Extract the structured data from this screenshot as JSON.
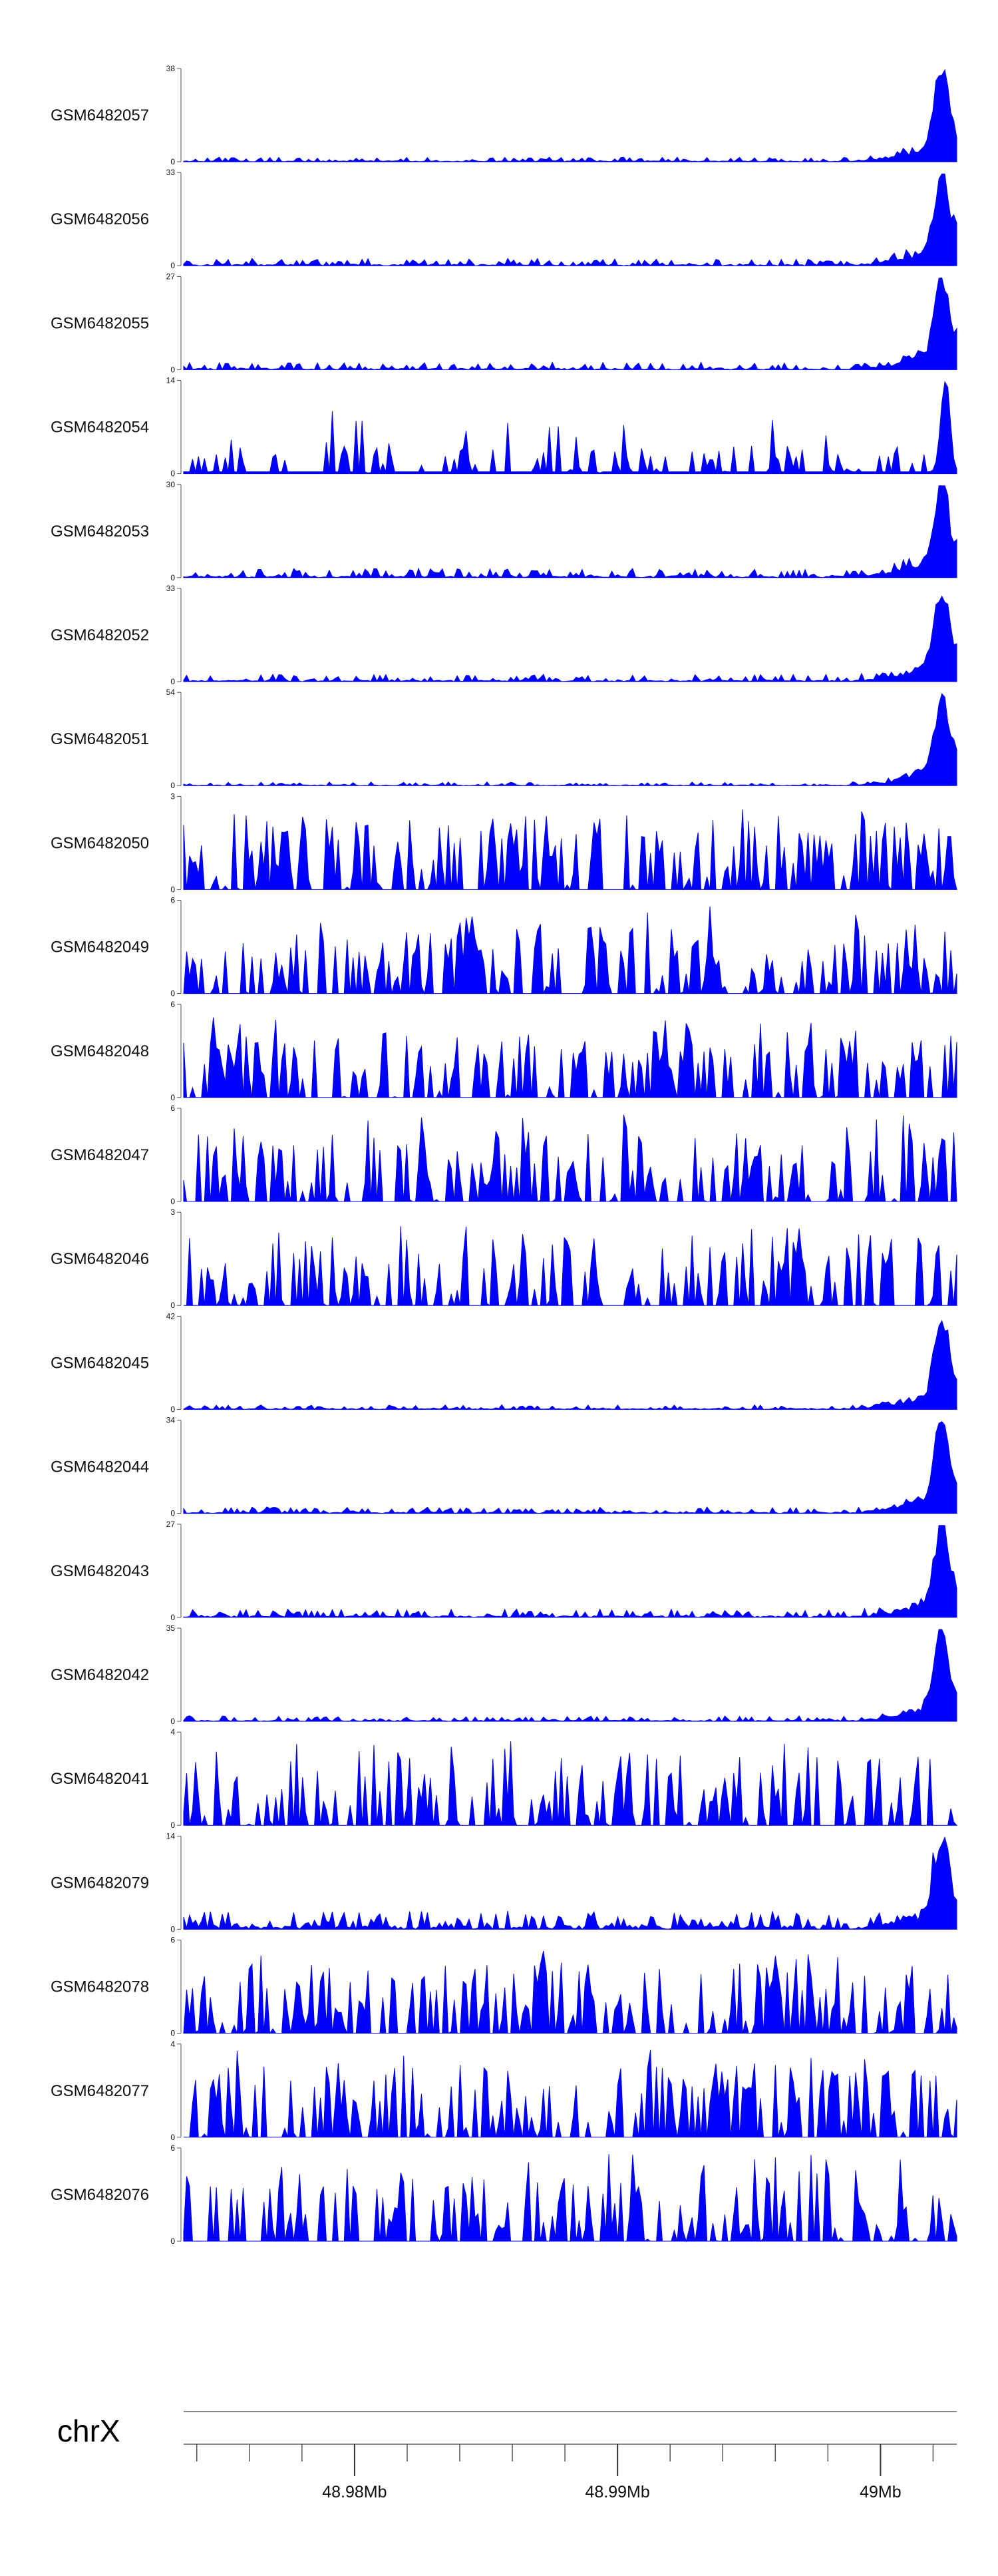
{
  "colors": {
    "signal": "#0000ff",
    "axis": "#555555",
    "text": "#111111"
  },
  "chart_data": {
    "type": "area",
    "chromosome": "chrX",
    "x_range": [
      48.9735,
      49.0029
    ],
    "x_ticks": [
      {
        "pos": 48.98,
        "label": "48.98Mb"
      },
      {
        "pos": 48.99,
        "label": "48.99Mb"
      },
      {
        "pos": 49.0,
        "label": "49Mb"
      }
    ],
    "tracks": [
      {
        "name": "GSM6482057",
        "ymax": 38,
        "ymin_label": "0",
        "ymax_label": "38",
        "profile": "peak",
        "peak": 0.97,
        "bg": 0.05,
        "seed": 11
      },
      {
        "name": "GSM6482056",
        "ymax": 33,
        "ymin_label": "0",
        "ymax_label": "33",
        "profile": "peak",
        "peak": 1.0,
        "bg": 0.08,
        "seed": 12
      },
      {
        "name": "GSM6482055",
        "ymax": 27,
        "ymin_label": "0",
        "ymax_label": "27",
        "profile": "peak",
        "peak": 0.97,
        "bg": 0.08,
        "seed": 13
      },
      {
        "name": "GSM6482054",
        "ymax": 14,
        "ymin_label": "0",
        "ymax_label": "14",
        "profile": "sparse",
        "peak": 1.0,
        "bg": 0.3,
        "seed": 14
      },
      {
        "name": "GSM6482053",
        "ymax": 30,
        "ymin_label": "0",
        "ymax_label": "30",
        "profile": "peak",
        "peak": 0.97,
        "bg": 0.1,
        "seed": 15
      },
      {
        "name": "GSM6482052",
        "ymax": 33,
        "ymin_label": "0",
        "ymax_label": "33",
        "profile": "peak",
        "peak": 0.95,
        "bg": 0.08,
        "seed": 16
      },
      {
        "name": "GSM6482051",
        "ymax": 54,
        "ymin_label": "0",
        "ymax_label": "54",
        "profile": "peak",
        "peak": 0.98,
        "bg": 0.04,
        "seed": 17
      },
      {
        "name": "GSM6482050",
        "ymax": 3,
        "ymin_label": "0",
        "ymax_label": "3",
        "profile": "noise",
        "peak": 0.9,
        "bg": 0.6,
        "seed": 18
      },
      {
        "name": "GSM6482049",
        "ymax": 6,
        "ymin_label": "0",
        "ymax_label": "6",
        "profile": "noise",
        "peak": 0.95,
        "bg": 0.45,
        "seed": 19
      },
      {
        "name": "GSM6482048",
        "ymax": 6,
        "ymin_label": "0",
        "ymax_label": "6",
        "profile": "noise",
        "peak": 0.9,
        "bg": 0.5,
        "seed": 20
      },
      {
        "name": "GSM6482047",
        "ymax": 6,
        "ymin_label": "0",
        "ymax_label": "6",
        "profile": "noise",
        "peak": 0.95,
        "bg": 0.5,
        "seed": 21
      },
      {
        "name": "GSM6482046",
        "ymax": 3,
        "ymin_label": "0",
        "ymax_label": "3",
        "profile": "noise",
        "peak": 0.9,
        "bg": 0.55,
        "seed": 22
      },
      {
        "name": "GSM6482045",
        "ymax": 42,
        "ymin_label": "0",
        "ymax_label": "42",
        "profile": "peak",
        "peak": 0.97,
        "bg": 0.05,
        "seed": 23
      },
      {
        "name": "GSM6482044",
        "ymax": 34,
        "ymin_label": "0",
        "ymax_label": "34",
        "profile": "peak",
        "peak": 0.95,
        "bg": 0.07,
        "seed": 24
      },
      {
        "name": "GSM6482043",
        "ymax": 27,
        "ymin_label": "0",
        "ymax_label": "27",
        "profile": "peak",
        "peak": 0.97,
        "bg": 0.09,
        "seed": 25
      },
      {
        "name": "GSM6482042",
        "ymax": 35,
        "ymin_label": "0",
        "ymax_label": "35",
        "profile": "peak",
        "peak": 0.97,
        "bg": 0.06,
        "seed": 26
      },
      {
        "name": "GSM6482041",
        "ymax": 4,
        "ymin_label": "0",
        "ymax_label": "4",
        "profile": "noise",
        "peak": 0.95,
        "bg": 0.5,
        "seed": 27
      },
      {
        "name": "GSM6482079",
        "ymax": 14,
        "ymin_label": "0",
        "ymax_label": "14",
        "profile": "peak",
        "peak": 0.95,
        "bg": 0.2,
        "seed": 28
      },
      {
        "name": "GSM6482078",
        "ymax": 6,
        "ymin_label": "0",
        "ymax_label": "6",
        "profile": "noise",
        "peak": 0.9,
        "bg": 0.55,
        "seed": 29
      },
      {
        "name": "GSM6482077",
        "ymax": 4,
        "ymin_label": "0",
        "ymax_label": "4",
        "profile": "noise",
        "peak": 0.95,
        "bg": 0.55,
        "seed": 30
      },
      {
        "name": "GSM6482076",
        "ymax": 6,
        "ymin_label": "0",
        "ymax_label": "6",
        "profile": "noise",
        "peak": 0.95,
        "bg": 0.5,
        "seed": 31
      }
    ]
  }
}
